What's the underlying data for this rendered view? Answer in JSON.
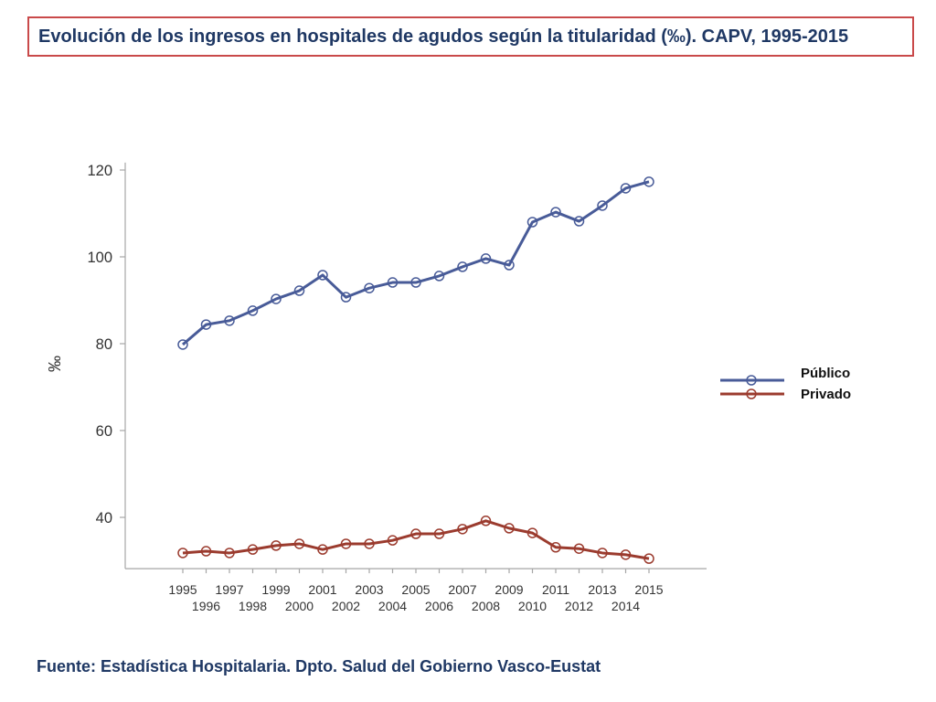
{
  "colors": {
    "title_text": "#1f3864",
    "title_border": "#c9494a",
    "axis": "#a6a6a6"
  },
  "chart_data": {
    "type": "line",
    "title": "Evolución de los ingresos en hospitales de agudos según la titularidad (‰). CAPV, 1995-2015",
    "source": "Fuente: Estadística Hospitalaria. Dpto. Salud del Gobierno Vasco-Eustat",
    "xlabel": "",
    "ylabel": "‰",
    "categories": [
      "1995",
      "1996",
      "1997",
      "1998",
      "1999",
      "2000",
      "2001",
      "2002",
      "2003",
      "2004",
      "2005",
      "2006",
      "2007",
      "2008",
      "2009",
      "2010",
      "2011",
      "2012",
      "2013",
      "2014",
      "2015"
    ],
    "yticks": [
      40,
      60,
      80,
      100,
      120
    ],
    "ylim": [
      28.6,
      121.7
    ],
    "grid": false,
    "legend_position": "right",
    "series": [
      {
        "name": "Público",
        "color": "#485b98",
        "values": [
          79.8,
          84.4,
          85.3,
          87.6,
          90.3,
          92.2,
          95.8,
          90.7,
          92.8,
          94.1,
          94.1,
          95.6,
          97.7,
          99.6,
          98.1,
          108.0,
          110.3,
          108.2,
          111.8,
          115.8,
          117.3
        ]
      },
      {
        "name": "Privado",
        "color": "#9b3b2e",
        "values": [
          31.8,
          32.2,
          31.8,
          32.6,
          33.5,
          33.9,
          32.6,
          33.9,
          33.9,
          34.7,
          36.2,
          36.2,
          37.3,
          39.2,
          37.5,
          36.4,
          33.1,
          32.8,
          31.8,
          31.4,
          30.5
        ]
      }
    ]
  }
}
